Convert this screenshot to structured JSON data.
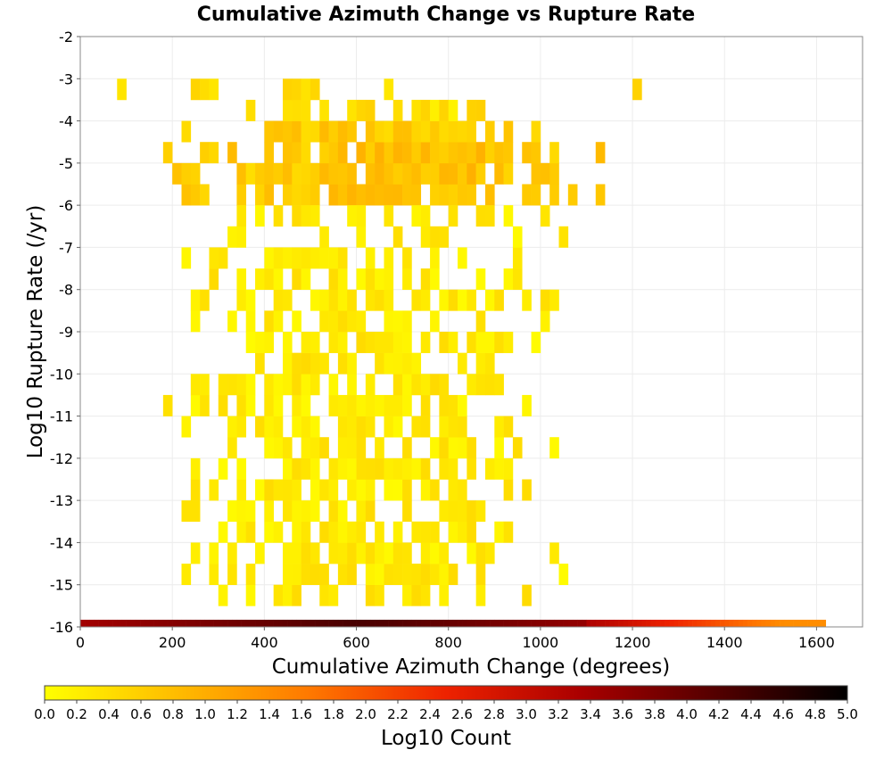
{
  "chart_data": {
    "type": "heatmap",
    "title": "Cumulative Azimuth Change vs Rupture Rate",
    "xlabel": "Cumulative Azimuth Change (degrees)",
    "ylabel": "Log10 Rupture Rate (/yr)",
    "xlim": [
      0,
      1700
    ],
    "ylim": [
      -16,
      -2
    ],
    "x_ticks": [
      "0",
      "200",
      "400",
      "600",
      "800",
      "1000",
      "1200",
      "1400",
      "1600"
    ],
    "y_ticks": [
      "-2",
      "-3",
      "-4",
      "-5",
      "-6",
      "-7",
      "-8",
      "-9",
      "-10",
      "-11",
      "-12",
      "-13",
      "-14",
      "-15",
      "-16"
    ],
    "grid": true,
    "bin_width_deg": 20,
    "bin_height_log10": 0.5,
    "colorbar": {
      "label": "Log10 Count",
      "range": [
        0.0,
        5.0
      ],
      "ticks": [
        "0.0",
        "0.2",
        "0.4",
        "0.6",
        "0.8",
        "1.0",
        "1.2",
        "1.4",
        "1.6",
        "1.8",
        "2.0",
        "2.2",
        "2.4",
        "2.6",
        "2.8",
        "3.0",
        "3.2",
        "3.4",
        "3.6",
        "3.8",
        "4.0",
        "4.2",
        "4.4",
        "4.6",
        "4.8",
        "5.0"
      ],
      "colors": [
        "#ffff00",
        "#ffbb00",
        "#ff7700",
        "#ee2200",
        "#aa0000",
        "#550000",
        "#000000"
      ]
    },
    "density_regions": [
      {
        "band": "upper",
        "y_range": [
          -6.2,
          -3.3
        ],
        "x_range": [
          0,
          1380
        ],
        "log10_count_range": [
          0.0,
          1.0
        ]
      },
      {
        "band": "middle",
        "y_range": [
          -15.7,
          -6.2
        ],
        "x_range": [
          120,
          1180
        ],
        "log10_count_range": [
          0.0,
          0.6
        ]
      },
      {
        "band": "bottom-row",
        "y_range": [
          -16,
          -15.8
        ],
        "x_range": [
          0,
          1620
        ],
        "log10_count_range": [
          1.5,
          5.0
        ]
      }
    ]
  }
}
